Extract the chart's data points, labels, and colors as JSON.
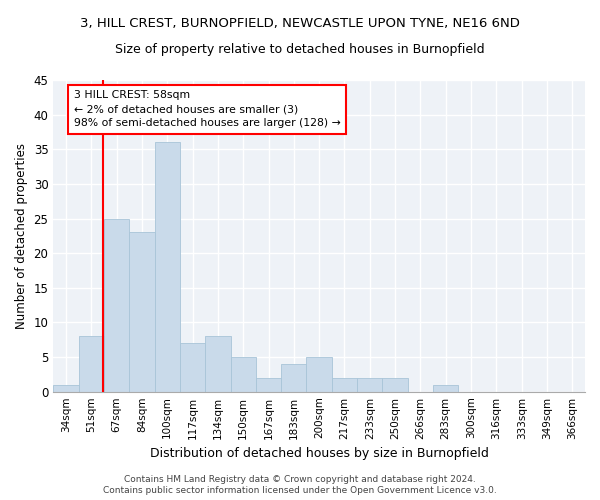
{
  "title1": "3, HILL CREST, BURNOPFIELD, NEWCASTLE UPON TYNE, NE16 6ND",
  "title2": "Size of property relative to detached houses in Burnopfield",
  "xlabel": "Distribution of detached houses by size in Burnopfield",
  "ylabel": "Number of detached properties",
  "bar_labels": [
    "34sqm",
    "51sqm",
    "67sqm",
    "84sqm",
    "100sqm",
    "117sqm",
    "134sqm",
    "150sqm",
    "167sqm",
    "183sqm",
    "200sqm",
    "217sqm",
    "233sqm",
    "250sqm",
    "266sqm",
    "283sqm",
    "300sqm",
    "316sqm",
    "333sqm",
    "349sqm",
    "366sqm"
  ],
  "bar_values": [
    1,
    8,
    25,
    23,
    36,
    7,
    8,
    5,
    2,
    4,
    5,
    2,
    2,
    2,
    0,
    1,
    0,
    0,
    0,
    0,
    0
  ],
  "bar_color": "#c9daea",
  "bar_edgecolor": "#a8c4d8",
  "bar_width": 1.0,
  "ylim": [
    0,
    45
  ],
  "yticks": [
    0,
    5,
    10,
    15,
    20,
    25,
    30,
    35,
    40,
    45
  ],
  "red_line_x": 1.47,
  "annotation_text": "3 HILL CREST: 58sqm\n← 2% of detached houses are smaller (3)\n98% of semi-detached houses are larger (128) →",
  "annotation_box_color": "white",
  "annotation_box_edgecolor": "red",
  "footer1": "Contains HM Land Registry data © Crown copyright and database right 2024.",
  "footer2": "Contains public sector information licensed under the Open Government Licence v3.0.",
  "bg_color": "#eef2f7",
  "grid_color": "#ffffff",
  "title1_fontsize": 9.5,
  "title2_fontsize": 9,
  "title1_fontweight": "normal"
}
